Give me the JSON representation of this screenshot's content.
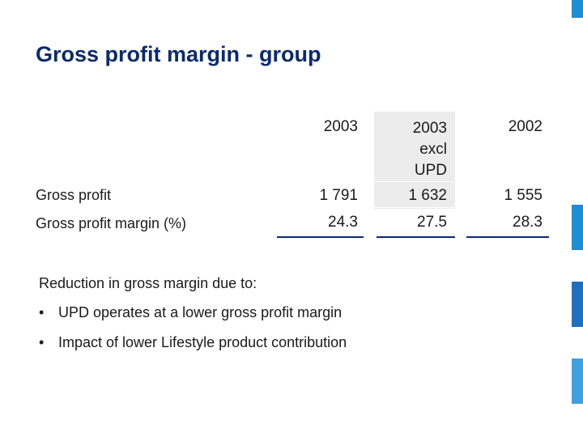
{
  "title": "Gross profit margin - group",
  "columns": [
    "2003",
    "2003 excl UPD",
    "2002"
  ],
  "column_lines": {
    "col1": [
      "2003"
    ],
    "col2": [
      "2003",
      "excl",
      "UPD"
    ],
    "col3": [
      "2002"
    ]
  },
  "rows": [
    {
      "label": "Gross profit",
      "values": [
        "1 791",
        "1 632",
        "1 555"
      ]
    },
    {
      "label": "Gross profit margin (%)",
      "values": [
        "24.3",
        "27.5",
        "28.3"
      ]
    }
  ],
  "note": "Reduction in gross margin due to:",
  "bullets": [
    "UPD operates at a lower gross profit margin",
    "Impact of lower Lifestyle product contribution"
  ],
  "colors": {
    "title": "#0b2a6e",
    "accent_bar_1": "#1a8fd6",
    "accent_bar_2": "#1f6fc0",
    "accent_bar_3": "#3f9fe0",
    "shade": "#ececec",
    "rule": "#0b2a6e"
  }
}
